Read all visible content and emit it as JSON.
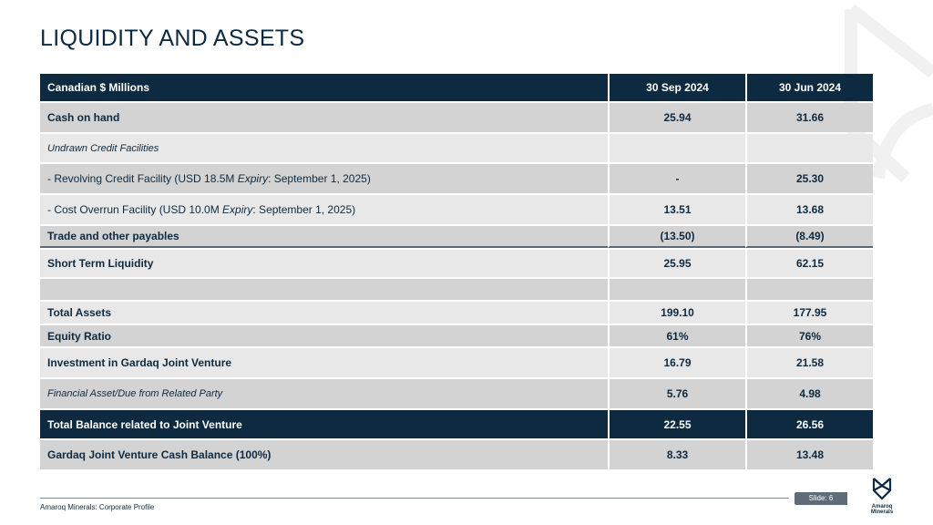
{
  "title": "LIQUIDITY AND ASSETS",
  "table": {
    "headers": [
      "Canadian $ Millions",
      "30 Sep 2024",
      "30 Jun 2024"
    ],
    "rows": [
      {
        "label": "Cash on hand",
        "sep": "25.94",
        "jun": "31.66"
      },
      {
        "label": "Undrawn Credit Facilities",
        "sep": "",
        "jun": ""
      },
      {
        "label": " - Revolving Credit Facility (USD 18.5M ",
        "label_italic": "Expiry",
        "label_tail": ": September 1, 2025)",
        "sep": "-",
        "jun": "25.30"
      },
      {
        "label": " - Cost Overrun Facility (USD 10.0M ",
        "label_italic": "Expiry",
        "label_tail": ": September 1, 2025)",
        "sep": "13.51",
        "jun": "13.68"
      },
      {
        "label": "Trade and other payables",
        "sep": "(13.50)",
        "jun": "(8.49)"
      },
      {
        "label": "Short Term Liquidity",
        "sep": "25.95",
        "jun": "62.15"
      },
      {
        "label": "",
        "sep": "",
        "jun": ""
      },
      {
        "label": "Total Assets",
        "sep": "199.10",
        "jun": "177.95"
      },
      {
        "label": "Equity Ratio",
        "sep": "61%",
        "jun": "76%"
      },
      {
        "label": "Investment in Gardaq Joint Venture",
        "sep": "16.79",
        "jun": "21.58"
      },
      {
        "label": "Financial Asset/Due from Related Party",
        "sep": "5.76",
        "jun": "4.98"
      },
      {
        "label": "Total Balance related to Joint Venture",
        "sep": "22.55",
        "jun": "26.56"
      },
      {
        "label": "Gardaq Joint Venture Cash Balance (100%)",
        "sep": "8.33",
        "jun": "13.48"
      }
    ]
  },
  "footer": {
    "text": "Amaroq Minerals: Corporate Profile",
    "slide": "Slide: 6",
    "logo_text": "Amaroq Minerals"
  },
  "colors": {
    "navy": "#0d2a40",
    "gray": "#d3d3d3",
    "light": "#e8e8e8"
  }
}
